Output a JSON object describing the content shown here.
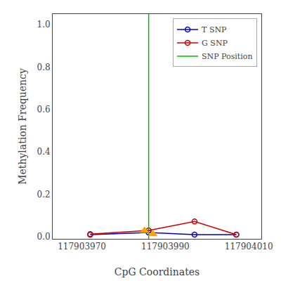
{
  "chart_data": {
    "type": "line",
    "xlabel": "CpG Coordinates",
    "ylabel": "Methylation Frequency",
    "xlim": [
      117903963,
      117904013
    ],
    "ylim": [
      -0.01,
      1.05
    ],
    "xticks": [
      117903970,
      117903990,
      117904010
    ],
    "yticks": [
      {
        "value": 0,
        "label": "0.0"
      },
      0.2,
      0.4,
      0.6,
      0.8,
      {
        "value": 1,
        "label": "1.0"
      }
    ],
    "grid": false,
    "legend": "upper right",
    "series": [
      {
        "name": "T SNP",
        "color": "#0000CC",
        "type": "line",
        "marker": "circle-open",
        "x": [
          117903972,
          117903986,
          117903997,
          117904007
        ],
        "values": [
          0.01,
          0.02,
          0.01,
          0.01
        ]
      },
      {
        "name": "G SNP",
        "color": "#CC0000",
        "type": "line",
        "marker": "circle-open",
        "x": [
          117903972,
          117903986,
          117903997,
          117904007
        ],
        "values": [
          0.012,
          0.03,
          0.072,
          0.01
        ]
      },
      {
        "name": "SNP Position",
        "color": "#00BB00",
        "type": "vline",
        "x": [
          117903986
        ]
      },
      {
        "color": "#FFA500",
        "type": "scatter",
        "marker": "triangle-up",
        "x": [
          117903985,
          117903987
        ],
        "values": [
          0.028,
          0.012
        ]
      }
    ]
  }
}
